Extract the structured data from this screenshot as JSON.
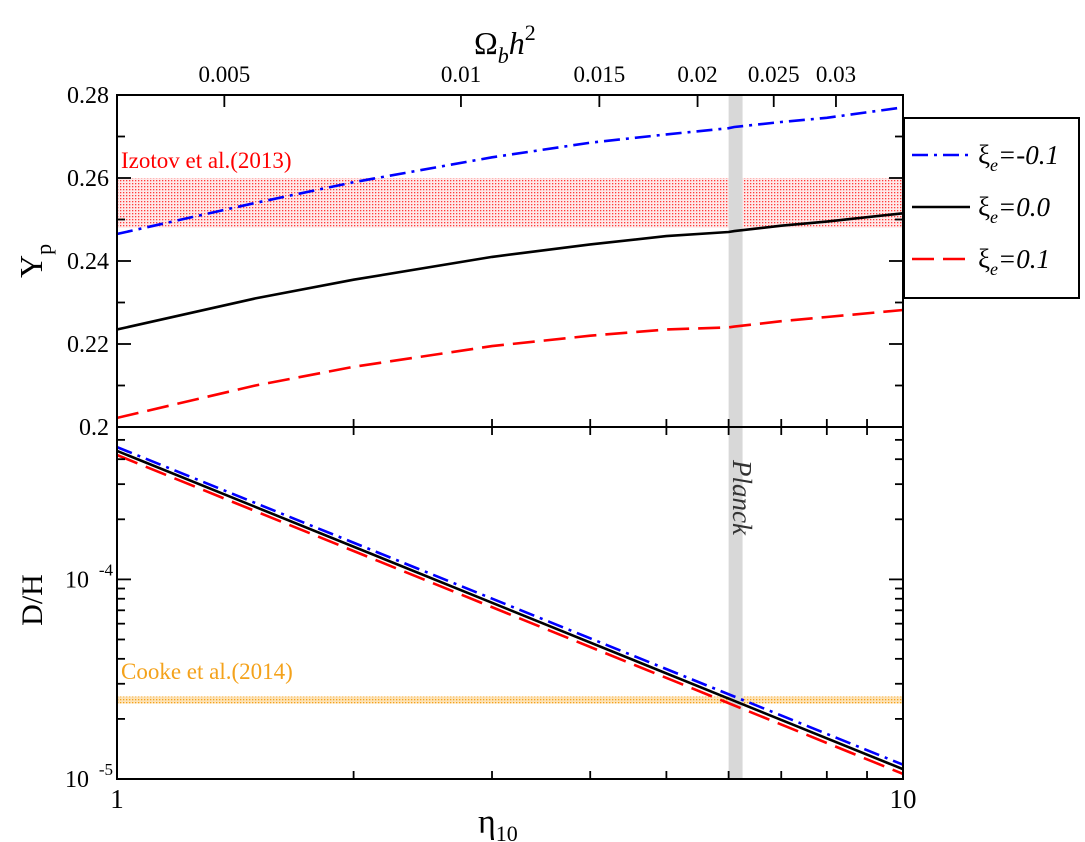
{
  "top_axis": {
    "label_main": "Ω",
    "label_sub": "b",
    "label_h": "h",
    "label_sup": "2",
    "ticks": [
      {
        "value": 0.005,
        "label": "0.005"
      },
      {
        "value": 0.01,
        "label": "0.01"
      },
      {
        "value": 0.015,
        "label": "0.015"
      },
      {
        "value": 0.02,
        "label": "0.02"
      },
      {
        "value": 0.025,
        "label": "0.025"
      },
      {
        "value": 0.03,
        "label": "0.03"
      }
    ]
  },
  "chart_data": [
    {
      "type": "line",
      "panel": "top",
      "xlabel": "η10",
      "ylabel": "Yp",
      "xscale": "log",
      "xlim": [
        1,
        10
      ],
      "ylim": [
        0.2,
        0.28
      ],
      "yticks": [
        {
          "value": 0.2,
          "label": "0.2"
        },
        {
          "value": 0.22,
          "label": "0.22"
        },
        {
          "value": 0.24,
          "label": "0.24"
        },
        {
          "value": 0.26,
          "label": "0.26"
        },
        {
          "value": 0.28,
          "label": "0.28"
        }
      ],
      "x": [
        1,
        1.5,
        2,
        3,
        4,
        5,
        6,
        6.1,
        7,
        8,
        10
      ],
      "series": [
        {
          "name": "ξe=-0.1",
          "color": "#0000ff",
          "style": "dash-dot",
          "values": [
            0.2465,
            0.254,
            0.259,
            0.265,
            0.2685,
            0.2705,
            0.272,
            0.2723,
            0.2735,
            0.2745,
            0.277
          ]
        },
        {
          "name": "ξe=0.0",
          "color": "#000000",
          "style": "solid",
          "values": [
            0.2235,
            0.231,
            0.2355,
            0.241,
            0.244,
            0.246,
            0.247,
            0.2472,
            0.2485,
            0.2495,
            0.2515
          ]
        },
        {
          "name": "ξe=0.1",
          "color": "#ff0000",
          "style": "dashed",
          "values": [
            0.2022,
            0.21,
            0.2145,
            0.2195,
            0.222,
            0.2235,
            0.224,
            0.2242,
            0.2255,
            0.2265,
            0.2282
          ]
        }
      ],
      "band": {
        "label": "Izotov et al.(2013)",
        "color": "#ff0000",
        "ymin": 0.248,
        "ymax": 0.26
      },
      "vband": {
        "label": "Planck",
        "xmin": 6.0,
        "xmax": 6.25,
        "color": "#d8d8d8"
      }
    },
    {
      "type": "line",
      "panel": "bottom",
      "xlabel": "η10",
      "ylabel": "D/H",
      "xscale": "log",
      "yscale": "log",
      "xlim": [
        1,
        10
      ],
      "ylim": [
        1e-05,
        0.00058
      ],
      "xticks": [
        {
          "value": 1,
          "label": "1"
        },
        {
          "value": 10,
          "label": "10"
        }
      ],
      "yticks": [
        {
          "value": 1e-05,
          "base": "10",
          "exp": "-5"
        },
        {
          "value": 0.0001,
          "base": "10",
          "exp": "-4"
        }
      ],
      "x": [
        1,
        10
      ],
      "series": [
        {
          "name": "ξe=-0.1",
          "color": "#0000ff",
          "style": "dash-dot",
          "values": [
            0.00046,
            1.18e-05
          ]
        },
        {
          "name": "ξe=0.0",
          "color": "#000000",
          "style": "solid",
          "values": [
            0.00044,
            1.12e-05
          ]
        },
        {
          "name": "ξe=0.1",
          "color": "#ff0000",
          "style": "dashed",
          "values": [
            0.00042,
            1.06e-05
          ]
        }
      ],
      "band": {
        "label": "Cooke et al.(2014)",
        "color": "#f4a21b",
        "ymin": 2.49e-05,
        "ymax": 2.59e-05
      }
    }
  ],
  "legend": {
    "placement": "top-right",
    "items": [
      {
        "greek": "ξ",
        "sub": "e",
        "value": "=-0.1",
        "color": "#0000ff",
        "style": "dash-dot"
      },
      {
        "greek": "ξ",
        "sub": "e",
        "value": "=0.0",
        "color": "#000000",
        "style": "solid"
      },
      {
        "greek": "ξ",
        "sub": "e",
        "value": "=0.1",
        "color": "#ff0000",
        "style": "dashed"
      }
    ]
  },
  "labels": {
    "ylabel_top_main": "Y",
    "ylabel_top_sub": "p",
    "ylabel_bottom": "D/H",
    "xlabel_main": "η",
    "xlabel_sub": "10",
    "planck": "Planck",
    "izotov": "Izotov et al.(2013)",
    "cooke": "Cooke et al.(2014)"
  }
}
